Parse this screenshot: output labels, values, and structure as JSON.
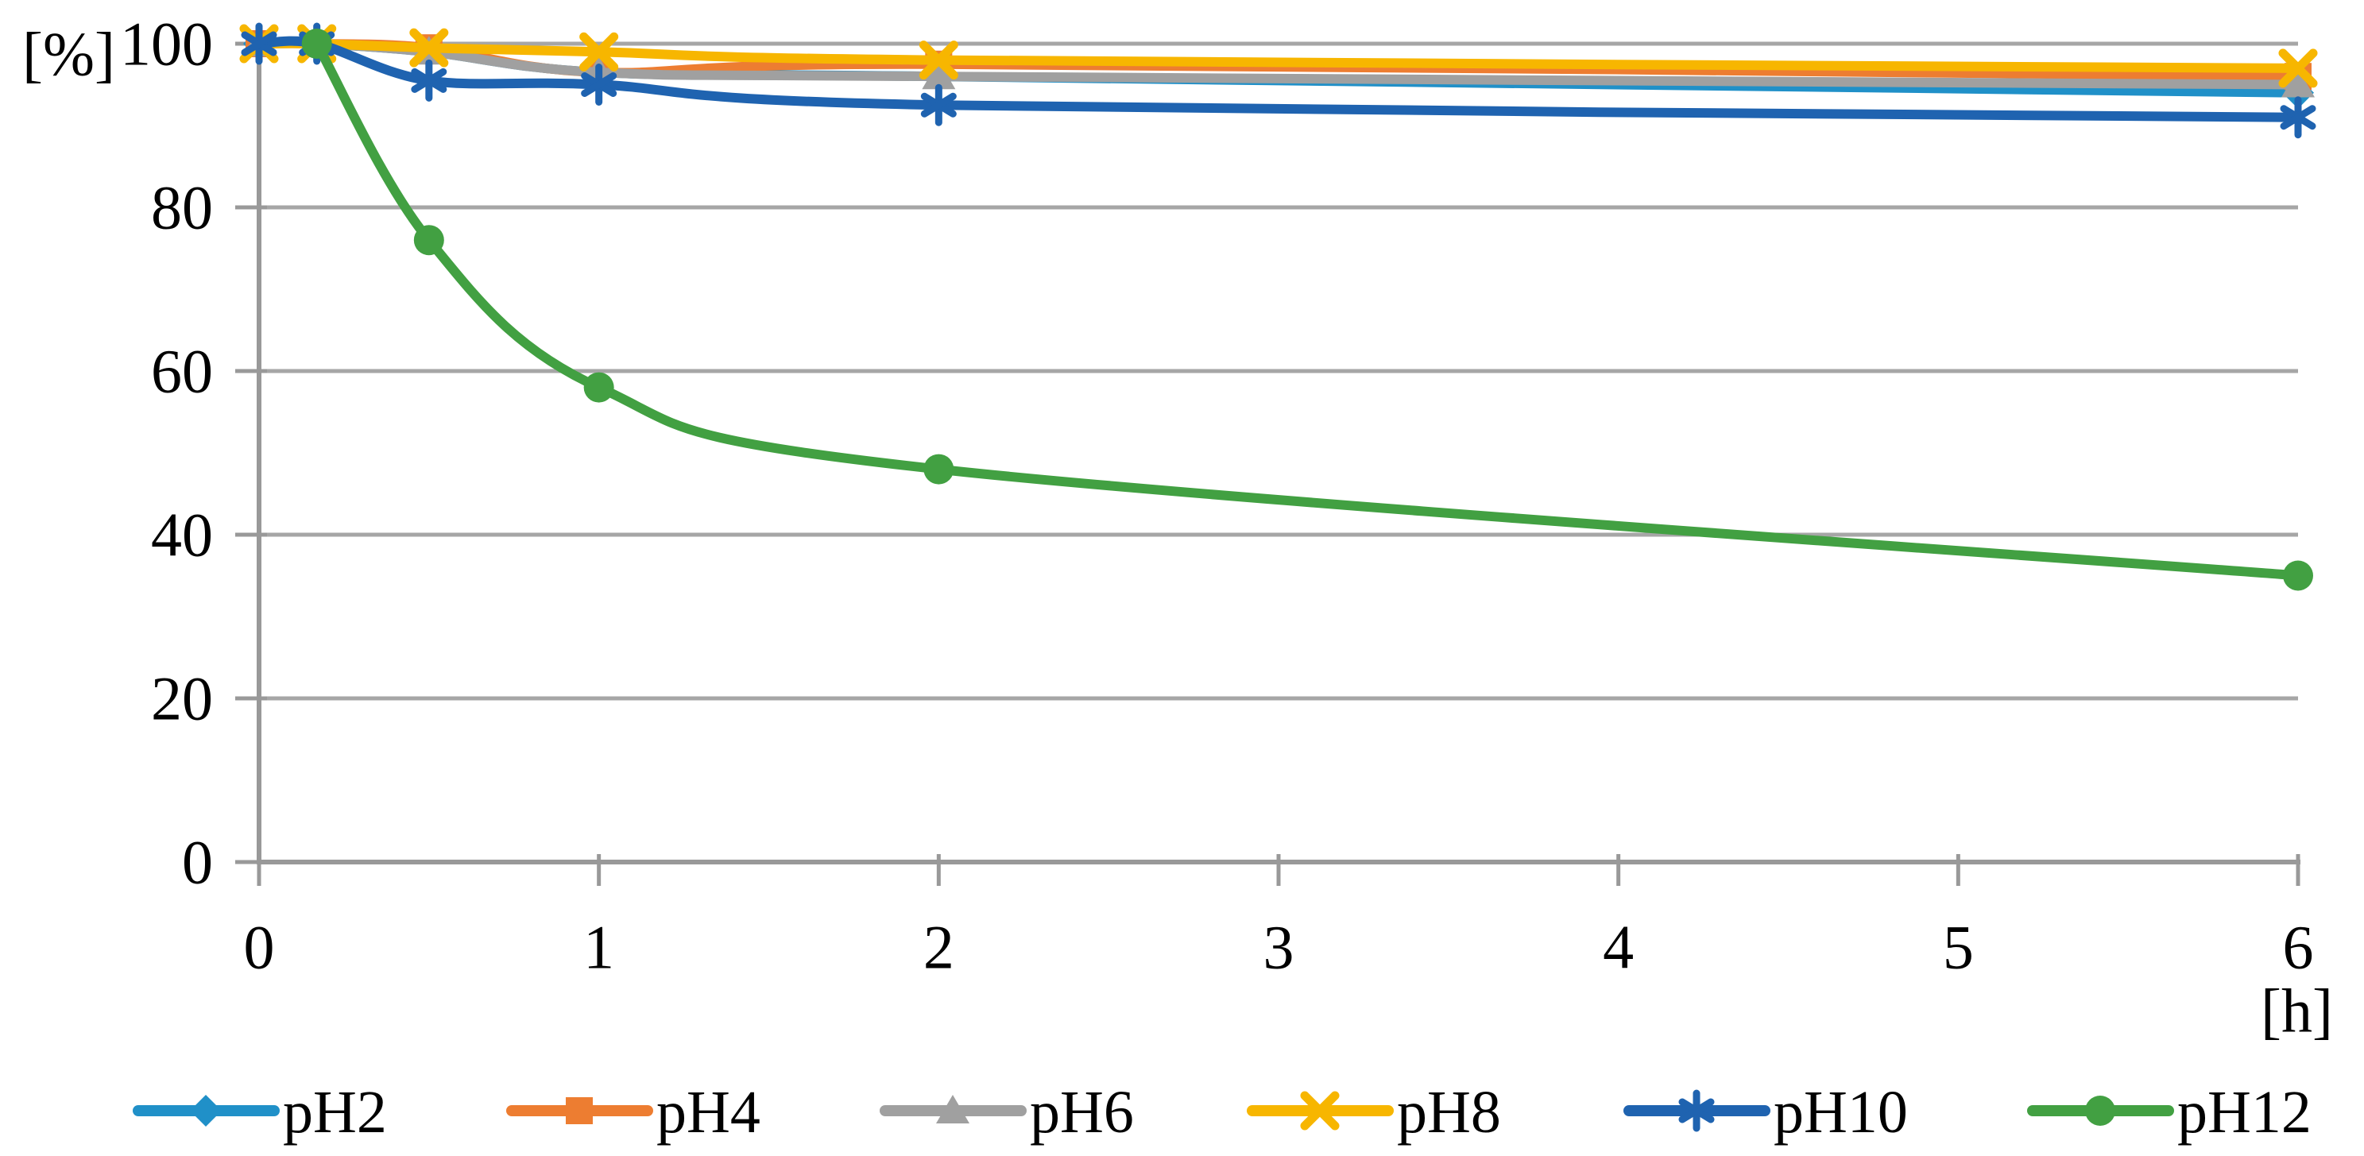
{
  "chart_data": {
    "type": "line",
    "title": "",
    "xlabel": "[h]",
    "ylabel": "[%]",
    "xlim": [
      0,
      6
    ],
    "ylim": [
      0,
      100
    ],
    "x_tick_labels": [
      "0",
      "1",
      "2",
      "3",
      "4",
      "5",
      "6"
    ],
    "x_tick_values": [
      0,
      1,
      2,
      3,
      4,
      5,
      6
    ],
    "y_tick_labels": [
      "0",
      "20",
      "40",
      "60",
      "80",
      "100"
    ],
    "y_tick_values": [
      0,
      20,
      40,
      60,
      80,
      100
    ],
    "grid": "horizontal",
    "grid_color": "#A6A6A6",
    "axis_color": "#999999",
    "legend_position": "bottom",
    "line_style": "smooth",
    "series": [
      {
        "name": "pH2",
        "color": "#2090C8",
        "marker": "diamond",
        "x": [
          0,
          0.17,
          0.5,
          1,
          2,
          6
        ],
        "y": [
          100,
          100,
          99,
          96.5,
          96,
          94
        ]
      },
      {
        "name": "pH4",
        "color": "#ED7D31",
        "marker": "square",
        "x": [
          0,
          0.17,
          0.5,
          1,
          2,
          6
        ],
        "y": [
          100,
          100,
          99.5,
          96.5,
          97.5,
          96
        ]
      },
      {
        "name": "pH6",
        "color": "#A0A0A0",
        "marker": "triangle",
        "x": [
          0,
          0.17,
          0.5,
          1,
          2,
          6
        ],
        "y": [
          100,
          100,
          99,
          96.5,
          96,
          95
        ]
      },
      {
        "name": "pH8",
        "color": "#F7B600",
        "marker": "x",
        "x": [
          0,
          0.17,
          0.5,
          1,
          2,
          6
        ],
        "y": [
          100,
          100,
          99.5,
          99,
          98,
          97
        ]
      },
      {
        "name": "pH10",
        "color": "#1F63B0",
        "marker": "star",
        "x": [
          0,
          0.17,
          0.5,
          1,
          2,
          6
        ],
        "y": [
          100,
          100,
          95.5,
          95,
          92.5,
          91
        ]
      },
      {
        "name": "pH12",
        "color": "#42A042",
        "marker": "circle",
        "x": [
          0.17,
          0.5,
          1,
          2,
          6
        ],
        "y": [
          100,
          76,
          58,
          48,
          35
        ]
      }
    ]
  }
}
